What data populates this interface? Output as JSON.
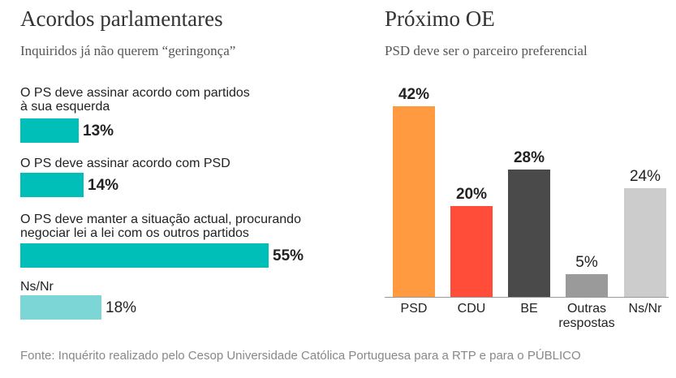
{
  "left_panel": {
    "title": "Acordos parlamentares",
    "subtitle": "Inquiridos já não querem “geringonça”"
  },
  "right_panel": {
    "title": "Próximo OE",
    "subtitle": "PSD deve ser o parceiro preferencial"
  },
  "source": "Fonte: Inquérito realizado pelo Cesop Universidade Católica Portuguesa para a RTP e para o PÚBLICO",
  "colors": {
    "teal": "#00bfb8",
    "teal_light": "#7dd6d6",
    "orange": "#ff9a40",
    "red": "#ff4d3a",
    "dark": "#4a4a4a",
    "mid_gray": "#9a9a9a",
    "light_gray": "#cccccc"
  },
  "chart_data": [
    {
      "type": "bar",
      "orientation": "horizontal",
      "title": "Acordos parlamentares",
      "subtitle": "Inquiridos já não querem “geringonça”",
      "categories": [
        "O PS deve assinar acordo com partidos à sua esquerda",
        "O PS deve assinar acordo com PSD",
        "O PS deve manter a situação actual, procurando negociar lei a lei com os outros partidos",
        "Ns/Nr"
      ],
      "label_lines": [
        [
          "O PS deve assinar acordo com partidos",
          "à sua esquerda"
        ],
        [
          "O PS deve assinar acordo com PSD"
        ],
        [
          "O PS deve manter a situação actual, procurando",
          "negociar lei a lei com os outros partidos"
        ],
        [
          "Ns/Nr"
        ]
      ],
      "values": [
        13,
        14,
        55,
        18
      ],
      "value_labels": [
        "13%",
        "14%",
        "55%",
        "18%"
      ],
      "unit": "%"
    },
    {
      "type": "bar",
      "orientation": "vertical",
      "title": "Próximo OE",
      "subtitle": "PSD deve ser o parceiro preferencial",
      "categories": [
        "PSD",
        "CDU",
        "BE",
        "Outras respostas",
        "Ns/Nr"
      ],
      "label_lines": [
        [
          "PSD"
        ],
        [
          "CDU"
        ],
        [
          "BE"
        ],
        [
          "Outras",
          "respostas"
        ],
        [
          "Ns/Nr"
        ]
      ],
      "values": [
        42,
        20,
        28,
        5,
        24
      ],
      "value_labels": [
        "42%",
        "20%",
        "28%",
        "5%",
        "24%"
      ],
      "unit": "%",
      "ylim": [
        0,
        42
      ]
    }
  ]
}
